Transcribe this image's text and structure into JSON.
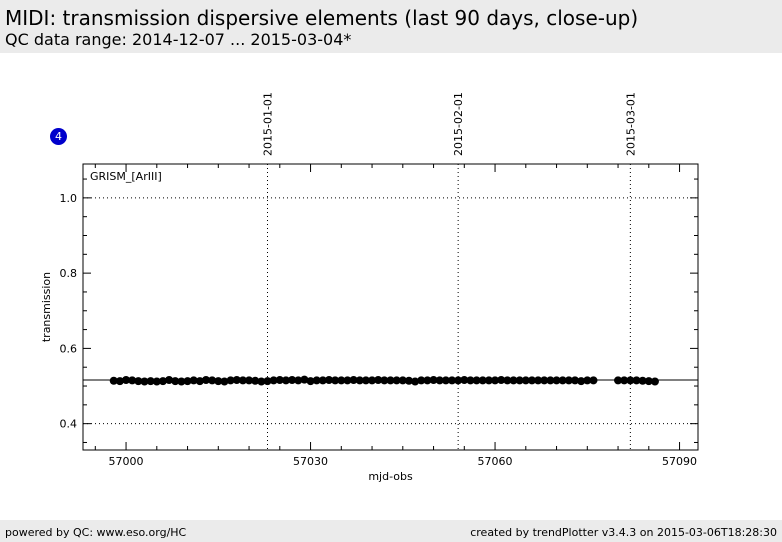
{
  "page": {
    "title": "MIDI: transmission dispersive elements (last 90 days, close-up)",
    "subtitle": "QC data range: 2014-12-07 ... 2015-03-04*"
  },
  "badge": "4",
  "footer": {
    "left": "powered by QC: www.eso.org/HC",
    "right": "created by trendPlotter v3.4.3 on 2015-03-06T18:28:30"
  },
  "chart_data": {
    "type": "scatter",
    "panel_label": "GRISM_[ArIII]",
    "xlabel": "mjd-obs",
    "ylabel": "transmission",
    "xlim": [
      56993,
      57093
    ],
    "ylim": [
      0.33,
      1.09
    ],
    "x_ticks": [
      57000,
      57030,
      57060,
      57090
    ],
    "y_ticks": [
      0.4,
      0.6,
      0.8,
      1.0
    ],
    "y_tick_labels": [
      "0.4",
      "0.6",
      "0.8",
      "1.0"
    ],
    "y_minor_step": 0.05,
    "x_minor_step": 5,
    "grid_y": [
      0.4,
      1.0
    ],
    "date_markers": [
      {
        "label": "2015-01-01",
        "x": 57023
      },
      {
        "label": "2015-02-01",
        "x": 57054
      },
      {
        "label": "2015-03-01",
        "x": 57082
      }
    ],
    "reference_line": 0.516,
    "marker_color": "#000000",
    "series": [
      {
        "x": [
          56998,
          56999,
          57000,
          57001,
          57002,
          57003,
          57004,
          57005,
          57006,
          57007,
          57008,
          57009,
          57010,
          57011,
          57012,
          57013,
          57014,
          57015,
          57016,
          57017,
          57018,
          57019,
          57020,
          57021,
          57022,
          57023,
          57024,
          57025,
          57026,
          57027,
          57028,
          57029,
          57030,
          57031,
          57032,
          57033,
          57034,
          57035,
          57036,
          57037,
          57038,
          57039,
          57040,
          57041,
          57042,
          57043,
          57044,
          57045,
          57046,
          57047,
          57048,
          57049,
          57050,
          57051,
          57052,
          57053,
          57054,
          57055,
          57056,
          57057,
          57058,
          57059,
          57060,
          57061,
          57062,
          57063,
          57064,
          57065,
          57066,
          57067,
          57068,
          57069,
          57070,
          57071,
          57072,
          57073,
          57074,
          57075,
          57076,
          57080,
          57081,
          57082,
          57083,
          57084,
          57085,
          57086
        ],
        "y": [
          0.514,
          0.513,
          0.516,
          0.515,
          0.513,
          0.512,
          0.513,
          0.512,
          0.513,
          0.516,
          0.513,
          0.512,
          0.513,
          0.515,
          0.513,
          0.516,
          0.515,
          0.513,
          0.512,
          0.515,
          0.516,
          0.515,
          0.515,
          0.514,
          0.512,
          0.513,
          0.515,
          0.516,
          0.515,
          0.516,
          0.515,
          0.517,
          0.513,
          0.515,
          0.515,
          0.516,
          0.515,
          0.515,
          0.515,
          0.516,
          0.515,
          0.515,
          0.515,
          0.516,
          0.515,
          0.515,
          0.515,
          0.515,
          0.514,
          0.512,
          0.515,
          0.515,
          0.516,
          0.515,
          0.515,
          0.515,
          0.515,
          0.516,
          0.515,
          0.515,
          0.515,
          0.515,
          0.515,
          0.516,
          0.515,
          0.515,
          0.515,
          0.515,
          0.515,
          0.515,
          0.515,
          0.515,
          0.515,
          0.515,
          0.515,
          0.515,
          0.513,
          0.515,
          0.515,
          0.515,
          0.515,
          0.515,
          0.515,
          0.514,
          0.513,
          0.512
        ]
      }
    ]
  }
}
